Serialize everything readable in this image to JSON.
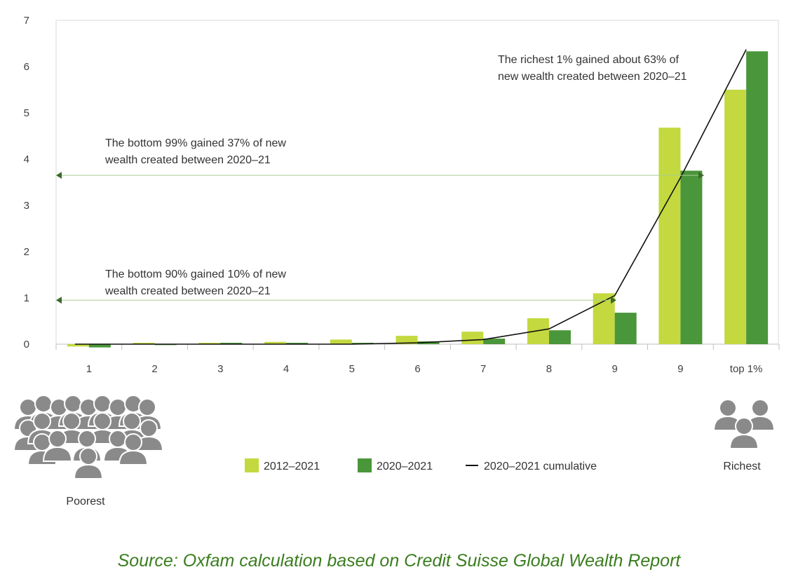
{
  "chart_data": {
    "type": "bar",
    "categories": [
      "1",
      "2",
      "3",
      "4",
      "5",
      "6",
      "7",
      "8",
      "9",
      "9",
      "top 1%"
    ],
    "series": [
      {
        "name": "2012–2021",
        "color": "#c3d93f",
        "values": [
          -0.05,
          0.03,
          0.03,
          0.05,
          0.1,
          0.18,
          0.27,
          0.56,
          1.1,
          4.68,
          5.5
        ]
      },
      {
        "name": "2020–2021",
        "color": "#4a963a",
        "values": [
          -0.07,
          -0.02,
          0.03,
          0.03,
          0.03,
          0.06,
          0.12,
          0.3,
          0.68,
          3.75,
          6.33
        ]
      }
    ],
    "line": {
      "name": "2020–2021  cumulative",
      "color": "#111111",
      "values": [
        0,
        0,
        0,
        0,
        0,
        0.03,
        0.1,
        0.33,
        1.05,
        3.6,
        6.37
      ]
    },
    "yticks": [
      0,
      1,
      2,
      3,
      4,
      5,
      6,
      7
    ],
    "ylim": [
      0,
      7
    ],
    "grid": false,
    "legend_position": "bottom",
    "annotations": [
      {
        "id": "richest",
        "lines": [
          "The richest 1% gained about 63% of",
          "new wealth created between 2020–21"
        ]
      },
      {
        "id": "bottom99",
        "lines": [
          "The bottom 99% gained 37% of new",
          "wealth created between 2020–21"
        ],
        "arrow_y": 3.65
      },
      {
        "id": "bottom90",
        "lines": [
          "The bottom 90% gained 10% of new",
          "wealth created between 2020–21"
        ],
        "arrow_y": 0.95
      }
    ]
  },
  "labels": {
    "poorest": "Poorest",
    "richest": "Richest"
  },
  "source": "Source: Oxfam calculation based on Credit Suisse Global Wealth Report"
}
